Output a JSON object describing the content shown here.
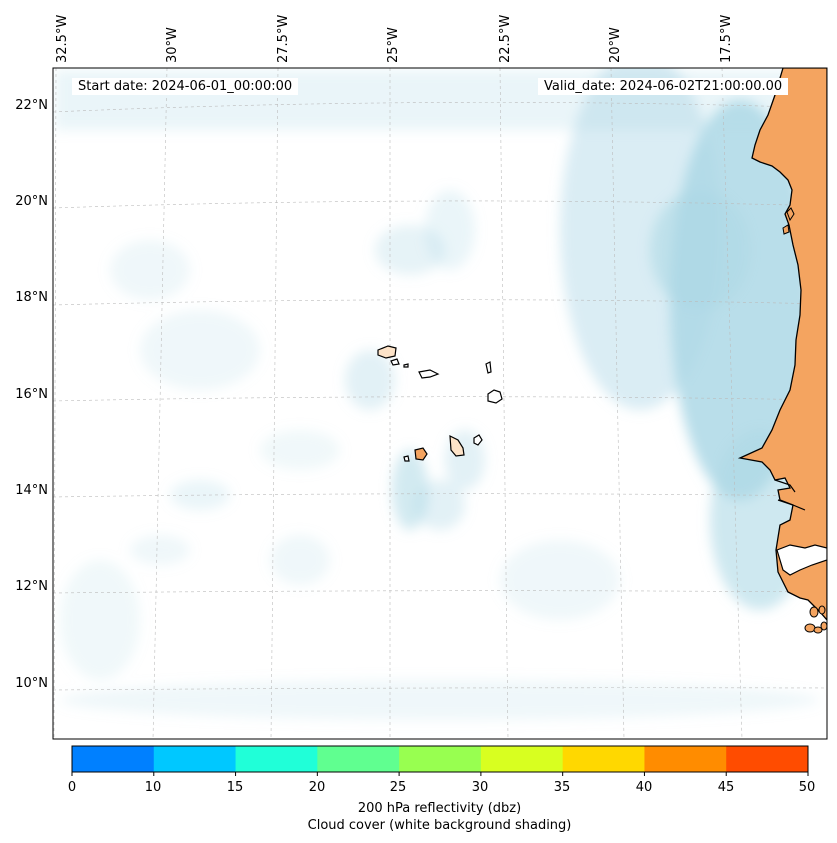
{
  "map": {
    "start_date_label": "Start date: 2024-06-01_00:00:00",
    "valid_date_label": "Valid_date: 2024-06-02T21:00:00.00",
    "lon_labels": [
      "32.5°W",
      "30°W",
      "27.5°W",
      "25°W",
      "22.5°W",
      "20°W",
      "17.5°W"
    ],
    "lat_labels": [
      "22°N",
      "20°N",
      "18°N",
      "16°N",
      "14°N",
      "12°N",
      "10°N"
    ],
    "colors": {
      "land": "#f4a460",
      "cloud": "#add8e6",
      "coast": "#000000",
      "grid": "#bbbbbb"
    }
  },
  "colorbar": {
    "ticks": [
      "0",
      "10",
      "15",
      "20",
      "25",
      "30",
      "35",
      "40",
      "45",
      "50"
    ],
    "colors": [
      "#0080ff",
      "#00c8ff",
      "#20ffd8",
      "#60ff90",
      "#98ff50",
      "#d8ff20",
      "#ffd800",
      "#ff8c00",
      "#ff4c00"
    ],
    "label_line1": "200 hPa reflectivity (dbz)",
    "label_line2": "Cloud cover (white background shading)"
  }
}
